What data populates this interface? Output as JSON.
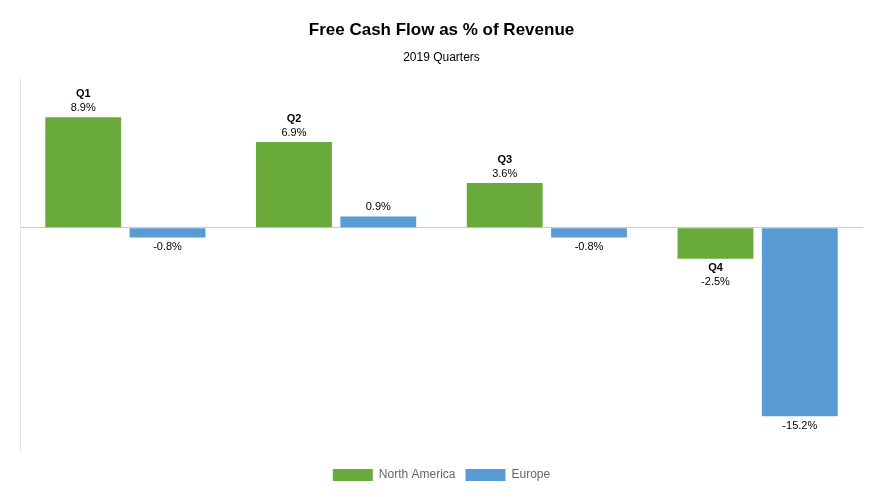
{
  "chart_data": {
    "type": "bar",
    "title": "Free Cash Flow as % of Revenue",
    "subtitle": "2019 Quarters",
    "categories": [
      "Q1",
      "Q2",
      "Q3",
      "Q4"
    ],
    "series": [
      {
        "name": "North America",
        "color": "#6aaa3a",
        "values": [
          8.9,
          6.9,
          3.6,
          -2.5
        ],
        "value_labels": [
          "8.9%",
          "6.9%",
          "3.6%",
          "-2.5%"
        ]
      },
      {
        "name": "Europe",
        "color": "#5b9bd5",
        "values": [
          -0.8,
          0.9,
          -0.8,
          -15.2
        ],
        "value_labels": [
          "-0.8%",
          "0.9%",
          "-0.8%",
          "-15.2%"
        ]
      }
    ],
    "ylim": [
      -18,
      12
    ],
    "yticks": [
      0
    ],
    "grid": true,
    "tick_labels": false,
    "data_labels": true,
    "legend": "bottom"
  }
}
